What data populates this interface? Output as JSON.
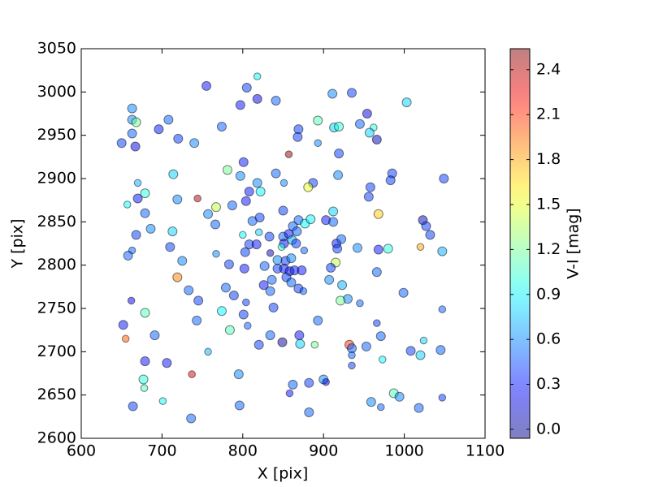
{
  "chart_data": {
    "type": "scatter",
    "xlabel": "X [pix]",
    "ylabel": "Y [pix]",
    "xlim": [
      600,
      1100
    ],
    "ylim": [
      2600,
      3050
    ],
    "xticks": [
      600,
      700,
      800,
      900,
      1000,
      1100
    ],
    "yticks": [
      2600,
      2650,
      2700,
      2750,
      2800,
      2850,
      2900,
      2950,
      3000,
      3050
    ],
    "cmap": "jet",
    "alpha": 0.5,
    "colorbar": {
      "label": "V-I [mag]",
      "clim": [
        -0.06,
        2.54
      ],
      "ticks": [
        {
          "value": 0,
          "label": "0.0"
        },
        0.3,
        0.6,
        0.9,
        1.2,
        1.5,
        1.8,
        2.1,
        2.4
      ]
    },
    "x": [
      650,
      663,
      663,
      668,
      663,
      667,
      708,
      696,
      720,
      740,
      755,
      805,
      818,
      797,
      818,
      841,
      774,
      869,
      868,
      893,
      911,
      935,
      1003,
      954,
      945,
      913,
      919,
      962,
      957,
      966,
      893,
      919,
      857,
      801,
      781,
      797,
      714,
      841,
      818,
      822,
      808,
      851,
      887,
      881,
      918,
      985,
      983,
      1049,
      958,
      956,
      670,
      679,
      670,
      657,
      719,
      744,
      767,
      757,
      787,
      804,
      679,
      686,
      668,
      713,
      766,
      812,
      821,
      850,
      869,
      877,
      884,
      862,
      867,
      903,
      912,
      912,
      968,
      1023,
      1027,
      1032,
      1020,
      800,
      820,
      833,
      850,
      857,
      851,
      861,
      808,
      817,
      710,
      663,
      658,
      767,
      725,
      803,
      848,
      866,
      876,
      916,
      922,
      917,
      942,
      968,
      980,
      1047,
      834,
      843,
      853,
      860,
      783,
      802,
      827,
      843,
      851,
      858,
      864,
      873,
      915,
      909,
      966,
      907,
      836,
      826,
      834,
      854,
      860,
      869,
      875,
      719,
      733,
      779,
      789,
      804,
      923,
      999,
      930,
      921,
      945,
      662,
      745,
      679,
      774,
      801,
      838,
      652,
      743,
      806,
      893,
      966,
      1047,
      655,
      691,
      784,
      834,
      870,
      849,
      871,
      889,
      820,
      932,
      935,
      953,
      971,
      1024,
      1045,
      1008,
      1020,
      935,
      973,
      757,
      679,
      706,
      935,
      737,
      795,
      677,
      678,
      862,
      882,
      900,
      903,
      858,
      987,
      994,
      1047,
      664,
      701,
      796,
      959,
      971,
      1018,
      736,
      882
    ],
    "y": [
      2941,
      2981,
      2968,
      2965,
      2952,
      2937,
      2968,
      2957,
      2946,
      2941,
      3007,
      3005,
      3018,
      2985,
      2992,
      2990,
      2960,
      2957,
      2948,
      2967,
      2998,
      2999,
      2988,
      2975,
      2963,
      2959,
      2960,
      2959,
      2953,
      2945,
      2941,
      2929,
      2928,
      2919,
      2910,
      2903,
      2905,
      2906,
      2895,
      2885,
      2885,
      2895,
      2895,
      2890,
      2904,
      2906,
      2898,
      2900,
      2890,
      2879,
      2895,
      2883,
      2877,
      2870,
      2876,
      2877,
      2867,
      2859,
      2869,
      2874,
      2860,
      2842,
      2835,
      2839,
      2847,
      2851,
      2855,
      2863,
      2852,
      2848,
      2853,
      2845,
      2839,
      2852,
      2862,
      2850,
      2859,
      2852,
      2845,
      2835,
      2821,
      2835,
      2838,
      2833,
      2833,
      2836,
      2825,
      2829,
      2824,
      2824,
      2821,
      2817,
      2811,
      2813,
      2805,
      2815,
      2821,
      2825,
      2817,
      2825,
      2830,
      2819,
      2820,
      2818,
      2819,
      2816,
      2814,
      2806,
      2805,
      2808,
      2801,
      2796,
      2799,
      2796,
      2796,
      2793,
      2794,
      2794,
      2803,
      2797,
      2792,
      2783,
      2783,
      2777,
      2770,
      2786,
      2780,
      2773,
      2770,
      2786,
      2771,
      2774,
      2765,
      2757,
      2777,
      2768,
      2761,
      2759,
      2756,
      2759,
      2759,
      2745,
      2747,
      2743,
      2751,
      2731,
      2736,
      2730,
      2736,
      2733,
      2749,
      2715,
      2719,
      2725,
      2719,
      2719,
      2711,
      2709,
      2708,
      2708,
      2708,
      2704,
      2706,
      2718,
      2713,
      2702,
      2701,
      2696,
      2696,
      2691,
      2700,
      2689,
      2687,
      2684,
      2674,
      2674,
      2668,
      2658,
      2662,
      2664,
      2668,
      2665,
      2652,
      2652,
      2648,
      2647,
      2637,
      2643,
      2638,
      2642,
      2636,
      2635,
      2623,
      2630
    ],
    "c": [
      0.4,
      0.6,
      0.6,
      1.2,
      0.5,
      0.2,
      0.5,
      0.3,
      0.4,
      0.6,
      0.3,
      0.4,
      0.9,
      0.3,
      0.2,
      0.5,
      0.5,
      0.4,
      0.4,
      1.1,
      0.6,
      0.4,
      0.8,
      0.2,
      0.5,
      0.8,
      1.0,
      1.0,
      0.8,
      0.1,
      0.6,
      0.4,
      2.5,
      0.3,
      1.2,
      0.6,
      0.8,
      0.5,
      0.6,
      0.9,
      0.3,
      0.6,
      0.4,
      1.5,
      0.6,
      0.4,
      0.4,
      0.4,
      0.4,
      0.4,
      0.7,
      1.0,
      0.3,
      0.9,
      0.6,
      2.4,
      1.4,
      0.6,
      0.5,
      0.3,
      0.5,
      0.6,
      0.4,
      0.8,
      0.5,
      0.5,
      0.4,
      0.4,
      0.5,
      0.9,
      0.9,
      0.5,
      0.5,
      0.3,
      0.8,
      0.5,
      1.7,
      0.1,
      0.4,
      0.4,
      1.8,
      0.9,
      0.8,
      0.4,
      0.5,
      0.3,
      0.3,
      0.7,
      0.4,
      0.3,
      0.4,
      0.5,
      0.5,
      0.6,
      0.6,
      0.4,
      1.0,
      0.4,
      0.5,
      0.3,
      0.5,
      0.4,
      0.6,
      0.3,
      1.0,
      0.7,
      0.1,
      0.6,
      0.4,
      0.6,
      0.4,
      0.3,
      0.5,
      0.4,
      0.3,
      0.3,
      0.3,
      0.3,
      1.4,
      0.4,
      0.5,
      0.6,
      0.5,
      0.3,
      0.5,
      0.4,
      0.5,
      0.4,
      0.5,
      1.9,
      0.5,
      0.5,
      0.4,
      0.4,
      0.7,
      0.5,
      0.6,
      1.2,
      0.5,
      0.2,
      0.4,
      1.1,
      0.9,
      0.4,
      0.4,
      0.3,
      0.5,
      0.5,
      0.5,
      0.4,
      0.5,
      2.0,
      0.5,
      1.1,
      0.5,
      0.3,
      0.0,
      0.8,
      1.2,
      0.4,
      2.1,
      0.5,
      0.5,
      0.5,
      0.8,
      0.5,
      0.4,
      0.8,
      0.5,
      0.9,
      0.7,
      0.3,
      0.3,
      0.4,
      2.3,
      0.6,
      1.0,
      1.1,
      0.5,
      0.4,
      0.6,
      0.2,
      0.3,
      1.1,
      0.6,
      0.4,
      0.4,
      0.9,
      0.5,
      0.6,
      0.5,
      0.5,
      0.5,
      0.5
    ],
    "sizes": [
      50,
      50,
      50,
      50,
      50,
      50,
      50,
      50,
      50,
      50,
      50,
      50,
      30,
      50,
      50,
      50,
      50,
      50,
      50,
      50,
      50,
      50,
      50,
      50,
      50,
      50,
      50,
      30,
      50,
      50,
      30,
      50,
      30,
      50,
      50,
      50,
      50,
      50,
      50,
      50,
      50,
      30,
      50,
      50,
      50,
      50,
      50,
      50,
      50,
      50,
      30,
      50,
      50,
      30,
      50,
      30,
      50,
      50,
      50,
      50,
      50,
      50,
      50,
      50,
      50,
      50,
      50,
      50,
      50,
      50,
      50,
      50,
      50,
      50,
      50,
      50,
      50,
      50,
      50,
      50,
      30,
      30,
      30,
      50,
      50,
      50,
      50,
      50,
      50,
      50,
      50,
      30,
      50,
      30,
      50,
      50,
      30,
      50,
      30,
      50,
      50,
      50,
      50,
      50,
      50,
      50,
      30,
      50,
      50,
      50,
      50,
      50,
      50,
      50,
      50,
      50,
      50,
      50,
      50,
      50,
      50,
      50,
      50,
      50,
      50,
      50,
      50,
      50,
      30,
      50,
      50,
      50,
      50,
      30,
      50,
      50,
      50,
      50,
      30,
      30,
      50,
      50,
      50,
      50,
      50,
      50,
      50,
      30,
      50,
      30,
      30,
      30,
      50,
      50,
      50,
      50,
      50,
      50,
      30,
      50,
      50,
      50,
      50,
      50,
      30,
      50,
      50,
      50,
      30,
      30,
      30,
      50,
      50,
      30,
      30,
      50,
      50,
      30,
      50,
      50,
      50,
      30,
      30,
      50,
      50,
      30,
      50,
      30,
      50,
      50,
      30,
      50,
      50,
      50
    ]
  }
}
